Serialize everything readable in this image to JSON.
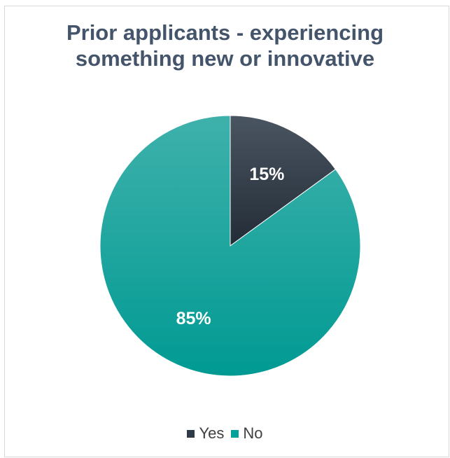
{
  "chart_data": {
    "type": "pie",
    "title_lines": [
      "Prior applicants - experiencing",
      "something new or innovative"
    ],
    "slices": [
      {
        "label": "Yes",
        "value": 15,
        "data_label": "15%",
        "color": "#2f3a47"
      },
      {
        "label": "No",
        "value": 85,
        "data_label": "85%",
        "color": "#00a19a"
      }
    ],
    "legend_placement": "bottom"
  }
}
